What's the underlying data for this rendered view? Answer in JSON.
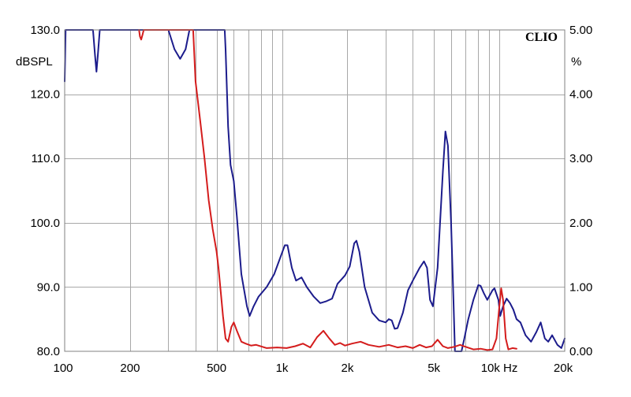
{
  "brand": "CLIO",
  "chart_data": {
    "type": "line",
    "x_scale": "log",
    "xlim": [
      100,
      20000
    ],
    "x_ticks": [
      {
        "value": 100,
        "label": "100"
      },
      {
        "value": 200,
        "label": "200"
      },
      {
        "value": 500,
        "label": "500"
      },
      {
        "value": 1000,
        "label": "1k"
      },
      {
        "value": 2000,
        "label": "2k"
      },
      {
        "value": 5000,
        "label": "5k"
      },
      {
        "value": 10000,
        "label": "10k Hz"
      },
      {
        "value": 20000,
        "label": "20k"
      }
    ],
    "y_left": {
      "unit": "dBSPL",
      "lim": [
        80,
        130
      ],
      "ticks": [
        "80.0",
        "90.0",
        "100.0",
        "110.0",
        "120.0",
        "130.0"
      ]
    },
    "y_right": {
      "unit": "%",
      "lim": [
        0,
        5
      ],
      "ticks": [
        "0.00",
        "1.00",
        "2.00",
        "3.00",
        "4.00",
        "5.00"
      ]
    },
    "grid": true,
    "series": [
      {
        "axis": "left",
        "color": "#1c1c8c",
        "points": [
          [
            100,
            122
          ],
          [
            101,
            130
          ],
          [
            135,
            130
          ],
          [
            138,
            126
          ],
          [
            140,
            123.5
          ],
          [
            142,
            126
          ],
          [
            145,
            130
          ],
          [
            300,
            130
          ],
          [
            320,
            127
          ],
          [
            340,
            125.5
          ],
          [
            360,
            127
          ],
          [
            375,
            130
          ],
          [
            545,
            130
          ],
          [
            550,
            127
          ],
          [
            565,
            115
          ],
          [
            580,
            109
          ],
          [
            600,
            106.5
          ],
          [
            620,
            101
          ],
          [
            650,
            92
          ],
          [
            690,
            87
          ],
          [
            710,
            85.5
          ],
          [
            740,
            87
          ],
          [
            780,
            88.5
          ],
          [
            850,
            90
          ],
          [
            920,
            92
          ],
          [
            980,
            94.5
          ],
          [
            1030,
            96.5
          ],
          [
            1060,
            96.5
          ],
          [
            1110,
            93
          ],
          [
            1160,
            91
          ],
          [
            1230,
            91.5
          ],
          [
            1300,
            90
          ],
          [
            1400,
            88.5
          ],
          [
            1500,
            87.5
          ],
          [
            1600,
            87.8
          ],
          [
            1700,
            88.2
          ],
          [
            1800,
            90.5
          ],
          [
            1950,
            91.8
          ],
          [
            2050,
            93.2
          ],
          [
            2150,
            96.8
          ],
          [
            2200,
            97.2
          ],
          [
            2270,
            95.5
          ],
          [
            2400,
            90
          ],
          [
            2600,
            86
          ],
          [
            2800,
            84.8
          ],
          [
            3000,
            84.5
          ],
          [
            3100,
            85
          ],
          [
            3200,
            84.8
          ],
          [
            3300,
            83.5
          ],
          [
            3400,
            83.6
          ],
          [
            3600,
            86
          ],
          [
            3800,
            89.5
          ],
          [
            4000,
            91
          ],
          [
            4300,
            93
          ],
          [
            4500,
            94
          ],
          [
            4650,
            93
          ],
          [
            4800,
            88
          ],
          [
            4950,
            87
          ],
          [
            5200,
            93
          ],
          [
            5500,
            108
          ],
          [
            5650,
            114.2
          ],
          [
            5800,
            112
          ],
          [
            6000,
            100
          ],
          [
            6150,
            88
          ],
          [
            6250,
            80
          ],
          [
            6700,
            80
          ],
          [
            6900,
            82
          ],
          [
            7200,
            85
          ],
          [
            7600,
            88
          ],
          [
            8000,
            90.3
          ],
          [
            8200,
            90.2
          ],
          [
            8500,
            89
          ],
          [
            8800,
            88
          ],
          [
            9300,
            89.5
          ],
          [
            9500,
            89.8
          ],
          [
            9900,
            88
          ],
          [
            10100,
            85.5
          ],
          [
            10400,
            87
          ],
          [
            10800,
            88.2
          ],
          [
            11200,
            87.5
          ],
          [
            11600,
            86.5
          ],
          [
            12000,
            85
          ],
          [
            12500,
            84.5
          ],
          [
            13200,
            82.5
          ],
          [
            14000,
            81.5
          ],
          [
            14800,
            83
          ],
          [
            15500,
            84.5
          ],
          [
            16200,
            82
          ],
          [
            16800,
            81.5
          ],
          [
            17500,
            82.5
          ],
          [
            18500,
            81
          ],
          [
            19300,
            80.5
          ],
          [
            20000,
            82
          ]
        ]
      },
      {
        "axis": "right",
        "color": "#d41c1c",
        "points": [
          [
            220,
            5
          ],
          [
            222,
            4.9
          ],
          [
            225,
            4.85
          ],
          [
            228,
            4.92
          ],
          [
            231,
            5
          ],
          [
            390,
            5
          ],
          [
            400,
            4.2
          ],
          [
            420,
            3.6
          ],
          [
            440,
            3.0
          ],
          [
            460,
            2.35
          ],
          [
            480,
            1.9
          ],
          [
            500,
            1.55
          ],
          [
            510,
            1.3
          ],
          [
            520,
            1.0
          ],
          [
            535,
            0.55
          ],
          [
            550,
            0.2
          ],
          [
            565,
            0.15
          ],
          [
            585,
            0.38
          ],
          [
            600,
            0.45
          ],
          [
            620,
            0.32
          ],
          [
            650,
            0.15
          ],
          [
            680,
            0.12
          ],
          [
            720,
            0.09
          ],
          [
            760,
            0.1
          ],
          [
            850,
            0.05
          ],
          [
            950,
            0.06
          ],
          [
            1050,
            0.05
          ],
          [
            1150,
            0.08
          ],
          [
            1250,
            0.12
          ],
          [
            1350,
            0.06
          ],
          [
            1450,
            0.22
          ],
          [
            1550,
            0.32
          ],
          [
            1650,
            0.2
          ],
          [
            1750,
            0.1
          ],
          [
            1850,
            0.13
          ],
          [
            1950,
            0.09
          ],
          [
            2100,
            0.12
          ],
          [
            2300,
            0.15
          ],
          [
            2500,
            0.1
          ],
          [
            2800,
            0.07
          ],
          [
            3100,
            0.1
          ],
          [
            3400,
            0.06
          ],
          [
            3700,
            0.08
          ],
          [
            4000,
            0.05
          ],
          [
            4300,
            0.1
          ],
          [
            4600,
            0.06
          ],
          [
            4900,
            0.08
          ],
          [
            5200,
            0.18
          ],
          [
            5500,
            0.08
          ],
          [
            5800,
            0.05
          ],
          [
            6200,
            0.07
          ],
          [
            6600,
            0.1
          ],
          [
            7000,
            0.07
          ],
          [
            7600,
            0.03
          ],
          [
            8200,
            0.04
          ],
          [
            8800,
            0.02
          ],
          [
            9300,
            0.03
          ],
          [
            9700,
            0.2
          ],
          [
            10000,
            0.7
          ],
          [
            10200,
            0.98
          ],
          [
            10400,
            0.8
          ],
          [
            10700,
            0.2
          ],
          [
            11000,
            0.03
          ],
          [
            11500,
            0.05
          ],
          [
            12000,
            0.04
          ]
        ]
      }
    ]
  }
}
